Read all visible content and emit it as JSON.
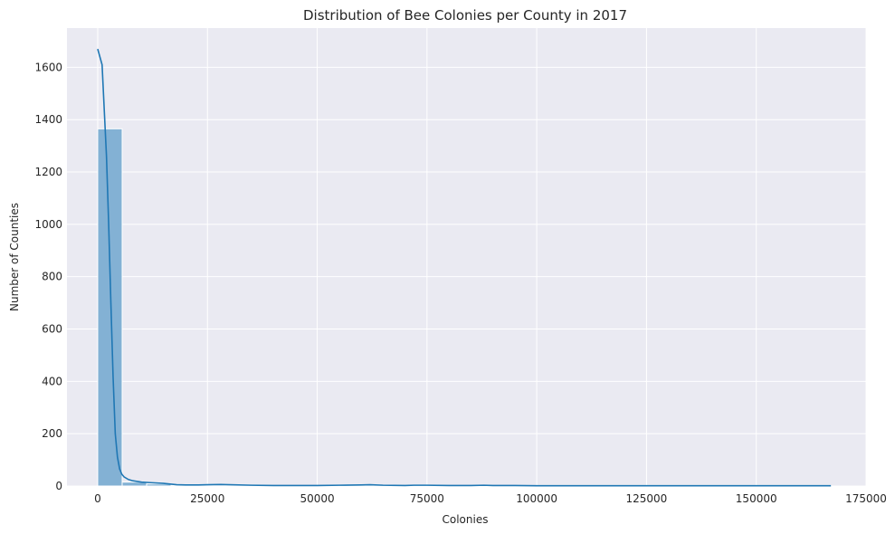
{
  "chart_data": {
    "type": "bar",
    "title": "Distribution of Bee Colonies per County in 2017",
    "xlabel": "Colonies",
    "ylabel": "Number of Counties",
    "xlim": [
      -7000,
      175000
    ],
    "ylim": [
      0,
      1750
    ],
    "xticks": [
      0,
      25000,
      50000,
      75000,
      100000,
      125000,
      150000,
      175000
    ],
    "yticks": [
      0,
      200,
      400,
      600,
      800,
      1000,
      1200,
      1400,
      1600
    ],
    "grid": true,
    "bin_width": 5570,
    "bins": [
      {
        "x0": 0,
        "x1": 5570,
        "count": 1365
      },
      {
        "x0": 5570,
        "x1": 11140,
        "count": 15
      },
      {
        "x0": 11140,
        "x1": 16710,
        "count": 8
      },
      {
        "x0": 16710,
        "x1": 22280,
        "count": 2
      },
      {
        "x0": 22280,
        "x1": 27850,
        "count": 2
      },
      {
        "x0": 27850,
        "x1": 33420,
        "count": 3
      },
      {
        "x0": 33420,
        "x1": 38990,
        "count": 1
      },
      {
        "x0": 38990,
        "x1": 44560,
        "count": 1
      },
      {
        "x0": 44560,
        "x1": 50130,
        "count": 0
      },
      {
        "x0": 50130,
        "x1": 55700,
        "count": 1
      },
      {
        "x0": 55700,
        "x1": 61270,
        "count": 2
      },
      {
        "x0": 61270,
        "x1": 66840,
        "count": 1
      },
      {
        "x0": 66840,
        "x1": 72410,
        "count": 1
      },
      {
        "x0": 72410,
        "x1": 77980,
        "count": 1
      },
      {
        "x0": 77980,
        "x1": 83550,
        "count": 0
      },
      {
        "x0": 83550,
        "x1": 89120,
        "count": 1
      },
      {
        "x0": 89120,
        "x1": 94690,
        "count": 0
      },
      {
        "x0": 94690,
        "x1": 100260,
        "count": 0
      },
      {
        "x0": 100260,
        "x1": 105830,
        "count": 0
      },
      {
        "x0": 105830,
        "x1": 111400,
        "count": 0
      },
      {
        "x0": 111400,
        "x1": 116970,
        "count": 0
      },
      {
        "x0": 116970,
        "x1": 122540,
        "count": 0
      },
      {
        "x0": 122540,
        "x1": 128110,
        "count": 0
      },
      {
        "x0": 128110,
        "x1": 133680,
        "count": 0
      },
      {
        "x0": 133680,
        "x1": 139250,
        "count": 0
      },
      {
        "x0": 139250,
        "x1": 144820,
        "count": 0
      },
      {
        "x0": 144820,
        "x1": 150390,
        "count": 0
      },
      {
        "x0": 150390,
        "x1": 155960,
        "count": 0
      },
      {
        "x0": 155960,
        "x1": 161530,
        "count": 0
      },
      {
        "x0": 161530,
        "x1": 167100,
        "count": 1
      }
    ],
    "kde": {
      "x": [
        0,
        1000,
        2000,
        2500,
        3000,
        3500,
        4000,
        4500,
        5000,
        5500,
        6000,
        7000,
        8000,
        10000,
        12000,
        15000,
        18000,
        20000,
        23000,
        25000,
        28000,
        30000,
        35000,
        40000,
        45000,
        50000,
        55000,
        60000,
        62000,
        65000,
        70000,
        72000,
        75000,
        80000,
        85000,
        88000,
        90000,
        95000,
        100000,
        110000,
        120000,
        130000,
        140000,
        150000,
        160000,
        167000
      ],
      "y": [
        1670,
        1610,
        1260,
        1000,
        700,
        420,
        200,
        110,
        65,
        45,
        35,
        25,
        20,
        15,
        13,
        10,
        5,
        4,
        4,
        5,
        6,
        5,
        3,
        2,
        2,
        2,
        3,
        4,
        5,
        3,
        2,
        3,
        3,
        2,
        2,
        3,
        2,
        2,
        1,
        1,
        1,
        1,
        1,
        1,
        1,
        1
      ]
    },
    "colors": {
      "background": "#eaeaf2",
      "grid": "#ffffff",
      "bar_fill": "#83b1d4",
      "bar_stroke": "#ffffff",
      "kde_line": "#1f77b4",
      "text": "#262626"
    }
  }
}
